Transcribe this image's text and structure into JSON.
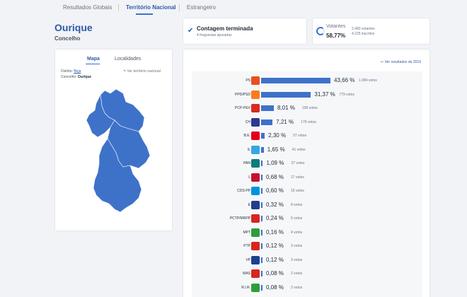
{
  "nav": {
    "tabs": [
      {
        "label": "Resultados Globais"
      },
      {
        "label": "Território Nacional"
      },
      {
        "label": "Estrangeiro"
      }
    ]
  },
  "place": {
    "title": "Ourique",
    "subtitle": "Concelho"
  },
  "count": {
    "title": "Contagem terminada",
    "detail": "4 freguesias apuradas"
  },
  "turnout": {
    "label": "Votantes",
    "percent": "58,77%",
    "voters": "2.483 votantes",
    "registered": "4.225 inscritos",
    "fraction": 0.5877
  },
  "map": {
    "tab_map": "Mapa",
    "tab_places": "Localidades",
    "district_label": "Distrito:",
    "district_value": "Beja",
    "council_label": "Concelho:",
    "council_value": "Ourique",
    "back_link": "↰ Ver território nacional",
    "fill_color": "#3e72c9"
  },
  "results": {
    "prev_link": "↩ Ver resultados de 2019",
    "rows": [
      {
        "name": "PS",
        "pct": "43,66 %",
        "votes": "1.084 votos",
        "value": 43.66,
        "logo_color": "#e8501e"
      },
      {
        "name": "PPD/PSD",
        "pct": "31,37 %",
        "votes": "779 votos",
        "value": 31.37,
        "logo_color": "#ff7a1a"
      },
      {
        "name": "PCP-PEV",
        "pct": "8,01 %",
        "votes": "199 votos",
        "value": 8.01,
        "logo_color": "#d62b1e"
      },
      {
        "name": "CH",
        "pct": "7,21 %",
        "votes": "179 votos",
        "value": 7.21,
        "logo_color": "#2b3a8c"
      },
      {
        "name": "B.E.",
        "pct": "2,30 %",
        "votes": "57 votos",
        "value": 2.3,
        "logo_color": "#e2001a"
      },
      {
        "name": "IL",
        "pct": "1,65 %",
        "votes": "41 votos",
        "value": 1.65,
        "logo_color": "#35a8e0"
      },
      {
        "name": "PAN",
        "pct": "1,09 %",
        "votes": "27 votos",
        "value": 1.09,
        "logo_color": "#0e7a7a"
      },
      {
        "name": "L",
        "pct": "0,68 %",
        "votes": "17 votos",
        "value": 0.68,
        "logo_color": "#c8102e"
      },
      {
        "name": "CDS-PP",
        "pct": "0,60 %",
        "votes": "15 votos",
        "value": 0.6,
        "logo_color": "#0093dd"
      },
      {
        "name": "E",
        "pct": "0,32 %",
        "votes": "8 votos",
        "value": 0.32,
        "logo_color": "#1d3f8f"
      },
      {
        "name": "PCTP/MRPP",
        "pct": "0,24 %",
        "votes": "6 votos",
        "value": 0.24,
        "logo_color": "#d7261e"
      },
      {
        "name": "MPT",
        "pct": "0,16 %",
        "votes": "4 votos",
        "value": 0.16,
        "logo_color": "#2e9d3a"
      },
      {
        "name": "PTP",
        "pct": "0,12 %",
        "votes": "3 votos",
        "value": 0.12,
        "logo_color": "#d7261e"
      },
      {
        "name": "VP",
        "pct": "0,12 %",
        "votes": "3 votos",
        "value": 0.12,
        "logo_color": "#1d3f8f"
      },
      {
        "name": "MAS",
        "pct": "0,08 %",
        "votes": "2 votos",
        "value": 0.08,
        "logo_color": "#d7261e"
      },
      {
        "name": "R.I.R.",
        "pct": "0,08 %",
        "votes": "2 votos",
        "value": 0.08,
        "logo_color": "#2e9d3a"
      }
    ]
  }
}
